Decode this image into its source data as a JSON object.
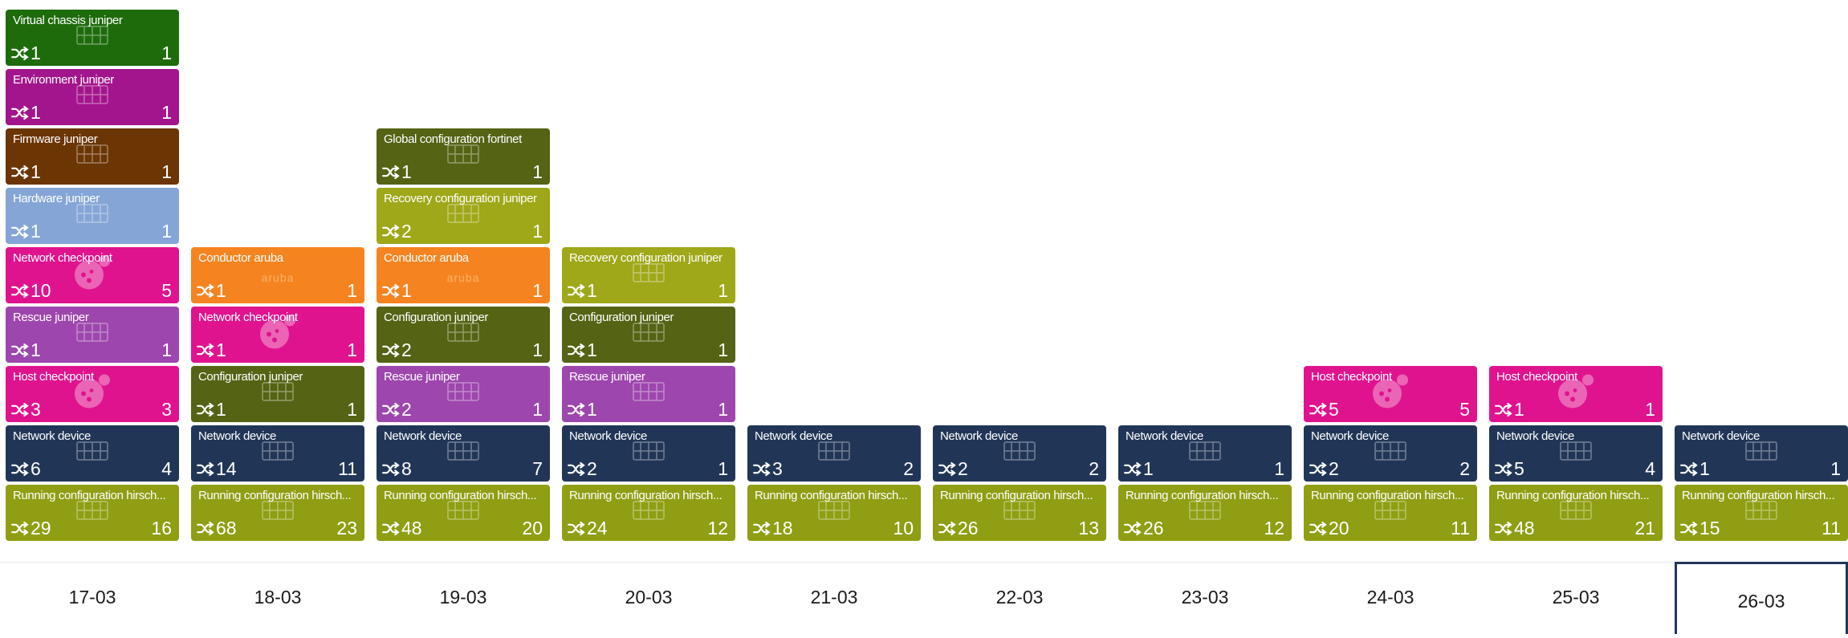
{
  "colors": {
    "olive": "#8f9e13",
    "navy": "#213657",
    "magenta": "#e0138e",
    "dark-olive": "#546314",
    "purple": "#9d46ad",
    "orange": "#f58420",
    "lime": "#9ea818",
    "light-blue": "#85a5d6",
    "brown": "#6b3504",
    "violet": "#a3158c",
    "green": "#1e6b0c",
    "selected-border": "#1f3759"
  },
  "days": [
    {
      "label": "17-03",
      "selected": false,
      "cards": [
        {
          "title": "Running configuration hirsch...",
          "left": "29",
          "right": "16",
          "color": "olive",
          "icon": "switch-icon"
        },
        {
          "title": "Network device",
          "left": "6",
          "right": "4",
          "color": "navy",
          "icon": "switch-icon"
        },
        {
          "title": "Host checkpoint",
          "left": "3",
          "right": "3",
          "color": "magenta",
          "icon": "checkpoint-icon"
        },
        {
          "title": "Rescue juniper",
          "left": "1",
          "right": "1",
          "color": "purple",
          "icon": "switch-icon"
        },
        {
          "title": "Network checkpoint",
          "left": "10",
          "right": "5",
          "color": "magenta",
          "icon": "checkpoint-icon"
        },
        {
          "title": "Hardware juniper",
          "left": "1",
          "right": "1",
          "color": "light-blue",
          "icon": "switch-icon"
        },
        {
          "title": "Firmware juniper",
          "left": "1",
          "right": "1",
          "color": "brown",
          "icon": "switch-icon"
        },
        {
          "title": "Environment juniper",
          "left": "1",
          "right": "1",
          "color": "violet",
          "icon": "switch-icon"
        },
        {
          "title": "Virtual chassis juniper",
          "left": "1",
          "right": "1",
          "color": "green",
          "icon": "switch-icon"
        }
      ]
    },
    {
      "label": "18-03",
      "selected": false,
      "cards": [
        {
          "title": "Running configuration hirsch...",
          "left": "68",
          "right": "23",
          "color": "olive",
          "icon": "switch-icon"
        },
        {
          "title": "Network device",
          "left": "14",
          "right": "11",
          "color": "navy",
          "icon": "switch-icon"
        },
        {
          "title": "Configuration juniper",
          "left": "1",
          "right": "1",
          "color": "dark-olive",
          "icon": "switch-icon"
        },
        {
          "title": "Network checkpoint",
          "left": "1",
          "right": "1",
          "color": "magenta",
          "icon": "checkpoint-icon"
        },
        {
          "title": "Conductor aruba",
          "left": "1",
          "right": "1",
          "color": "orange",
          "icon": "aruba-logo",
          "icon_text": "aruba"
        }
      ]
    },
    {
      "label": "19-03",
      "selected": false,
      "cards": [
        {
          "title": "Running configuration hirsch...",
          "left": "48",
          "right": "20",
          "color": "olive",
          "icon": "switch-icon"
        },
        {
          "title": "Network device",
          "left": "8",
          "right": "7",
          "color": "navy",
          "icon": "switch-icon"
        },
        {
          "title": "Rescue juniper",
          "left": "2",
          "right": "1",
          "color": "purple",
          "icon": "switch-icon"
        },
        {
          "title": "Configuration juniper",
          "left": "2",
          "right": "1",
          "color": "dark-olive",
          "icon": "switch-icon"
        },
        {
          "title": "Conductor aruba",
          "left": "1",
          "right": "1",
          "color": "orange",
          "icon": "aruba-logo",
          "icon_text": "aruba"
        },
        {
          "title": "Recovery configuration juniper",
          "left": "2",
          "right": "1",
          "color": "lime",
          "icon": "switch-icon"
        },
        {
          "title": "Global configuration fortinet",
          "left": "1",
          "right": "1",
          "color": "dark-olive",
          "icon": "switch-icon"
        }
      ]
    },
    {
      "label": "20-03",
      "selected": false,
      "cards": [
        {
          "title": "Running configuration hirsch...",
          "left": "24",
          "right": "12",
          "color": "olive",
          "icon": "switch-icon"
        },
        {
          "title": "Network device",
          "left": "2",
          "right": "1",
          "color": "navy",
          "icon": "switch-icon"
        },
        {
          "title": "Rescue juniper",
          "left": "1",
          "right": "1",
          "color": "purple",
          "icon": "switch-icon"
        },
        {
          "title": "Configuration juniper",
          "left": "1",
          "right": "1",
          "color": "dark-olive",
          "icon": "switch-icon"
        },
        {
          "title": "Recovery configuration juniper",
          "left": "1",
          "right": "1",
          "color": "lime",
          "icon": "switch-icon"
        }
      ]
    },
    {
      "label": "21-03",
      "selected": false,
      "cards": [
        {
          "title": "Running configuration hirsch...",
          "left": "18",
          "right": "10",
          "color": "olive",
          "icon": "switch-icon"
        },
        {
          "title": "Network device",
          "left": "3",
          "right": "2",
          "color": "navy",
          "icon": "switch-icon"
        }
      ]
    },
    {
      "label": "22-03",
      "selected": false,
      "cards": [
        {
          "title": "Running configuration hirsch...",
          "left": "26",
          "right": "13",
          "color": "olive",
          "icon": "switch-icon"
        },
        {
          "title": "Network device",
          "left": "2",
          "right": "2",
          "color": "navy",
          "icon": "switch-icon"
        }
      ]
    },
    {
      "label": "23-03",
      "selected": false,
      "cards": [
        {
          "title": "Running configuration hirsch...",
          "left": "26",
          "right": "12",
          "color": "olive",
          "icon": "switch-icon"
        },
        {
          "title": "Network device",
          "left": "1",
          "right": "1",
          "color": "navy",
          "icon": "switch-icon"
        }
      ]
    },
    {
      "label": "24-03",
      "selected": false,
      "cards": [
        {
          "title": "Running configuration hirsch...",
          "left": "20",
          "right": "11",
          "color": "olive",
          "icon": "switch-icon"
        },
        {
          "title": "Network device",
          "left": "2",
          "right": "2",
          "color": "navy",
          "icon": "switch-icon"
        },
        {
          "title": "Host checkpoint",
          "left": "5",
          "right": "5",
          "color": "magenta",
          "icon": "checkpoint-icon"
        }
      ]
    },
    {
      "label": "25-03",
      "selected": false,
      "cards": [
        {
          "title": "Running configuration hirsch...",
          "left": "48",
          "right": "21",
          "color": "olive",
          "icon": "switch-icon"
        },
        {
          "title": "Network device",
          "left": "5",
          "right": "4",
          "color": "navy",
          "icon": "switch-icon"
        },
        {
          "title": "Host checkpoint",
          "left": "1",
          "right": "1",
          "color": "magenta",
          "icon": "checkpoint-icon"
        }
      ]
    },
    {
      "label": "26-03",
      "selected": true,
      "cards": [
        {
          "title": "Running configuration hirsch...",
          "left": "15",
          "right": "11",
          "color": "olive",
          "icon": "switch-icon"
        },
        {
          "title": "Network device",
          "left": "1",
          "right": "1",
          "color": "navy",
          "icon": "switch-icon"
        }
      ]
    }
  ]
}
